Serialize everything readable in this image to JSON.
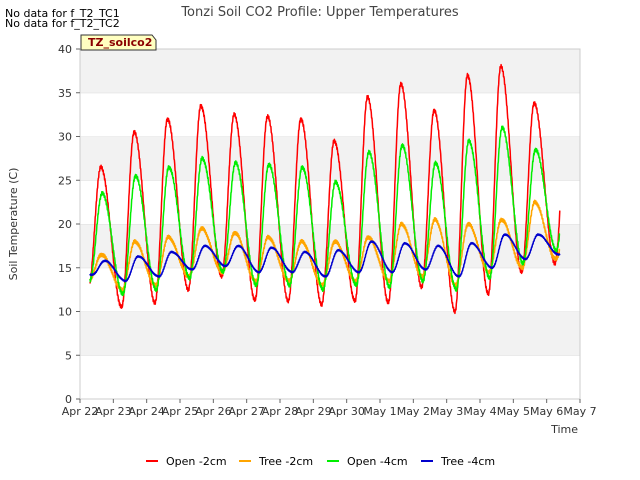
{
  "header": {
    "nodata_lines": [
      "No data for f_T2_TC1",
      "No data for f_T2_TC2"
    ],
    "badge": "TZ_soilco2"
  },
  "chart_data": {
    "type": "line",
    "title": "Tonzi Soil CO2 Profile: Upper Temperatures",
    "xlabel": "Time",
    "ylabel": "Soil Temperature (C)",
    "ylim": [
      0,
      40
    ],
    "yticks": [
      0,
      5,
      10,
      15,
      20,
      25,
      30,
      35,
      40
    ],
    "xticks": [
      "Apr 22",
      "Apr 23",
      "Apr 24",
      "Apr 25",
      "Apr 26",
      "Apr 27",
      "Apr 28",
      "Apr 29",
      "Apr 30",
      "May 1",
      "May 2",
      "May 3",
      "May 4",
      "May 5",
      "May 6",
      "May 7"
    ],
    "xrange_days": [
      0,
      15
    ],
    "data_start_day": 0.3,
    "data_end_day": 14.4,
    "grid": "horizontal bands",
    "legend_position": "bottom",
    "series": [
      {
        "name": "Open -2cm",
        "color": "#ff0000",
        "peaks": [
          26.5,
          30.5,
          32.0,
          33.5,
          32.5,
          32.3,
          32.0,
          29.5,
          34.5,
          36.0,
          33.0,
          37.0,
          38.0,
          33.8
        ],
        "troughs": [
          12.5,
          10.5,
          11.0,
          12.5,
          14.0,
          11.3,
          11.2,
          10.8,
          11.2,
          11.0,
          12.8,
          10.0,
          12.0,
          14.5,
          15.5
        ]
      },
      {
        "name": "Tree -2cm",
        "color": "#ffa500",
        "peaks": [
          16.5,
          18.0,
          18.5,
          19.5,
          19.0,
          18.5,
          18.0,
          18.0,
          18.5,
          20.0,
          20.5,
          20.0,
          20.5,
          22.5,
          20.5
        ],
        "troughs": [
          13.5,
          12.5,
          13.0,
          14.0,
          14.5,
          13.5,
          13.5,
          13.0,
          13.5,
          13.5,
          14.0,
          13.0,
          14.5,
          15.0,
          16.0
        ]
      },
      {
        "name": "Open -4cm",
        "color": "#00ee00",
        "peaks": [
          23.5,
          25.5,
          26.5,
          27.5,
          27.0,
          26.8,
          26.5,
          24.8,
          28.2,
          29.0,
          27.0,
          29.5,
          31.0,
          28.5
        ],
        "troughs": [
          13.5,
          12.0,
          12.5,
          13.8,
          14.5,
          13.0,
          13.0,
          12.5,
          13.0,
          12.8,
          13.5,
          12.5,
          13.8,
          15.5,
          17.0
        ]
      },
      {
        "name": "Tree -4cm",
        "color": "#0000cc",
        "peaks": [
          15.8,
          16.3,
          16.8,
          17.5,
          17.5,
          17.3,
          16.8,
          17.0,
          18.0,
          17.8,
          17.5,
          17.8,
          18.8,
          18.8,
          17.0
        ],
        "troughs": [
          14.2,
          13.5,
          14.0,
          14.8,
          15.2,
          14.5,
          14.5,
          14.0,
          14.5,
          14.5,
          14.8,
          14.0,
          15.0,
          16.0,
          16.5
        ]
      }
    ]
  }
}
